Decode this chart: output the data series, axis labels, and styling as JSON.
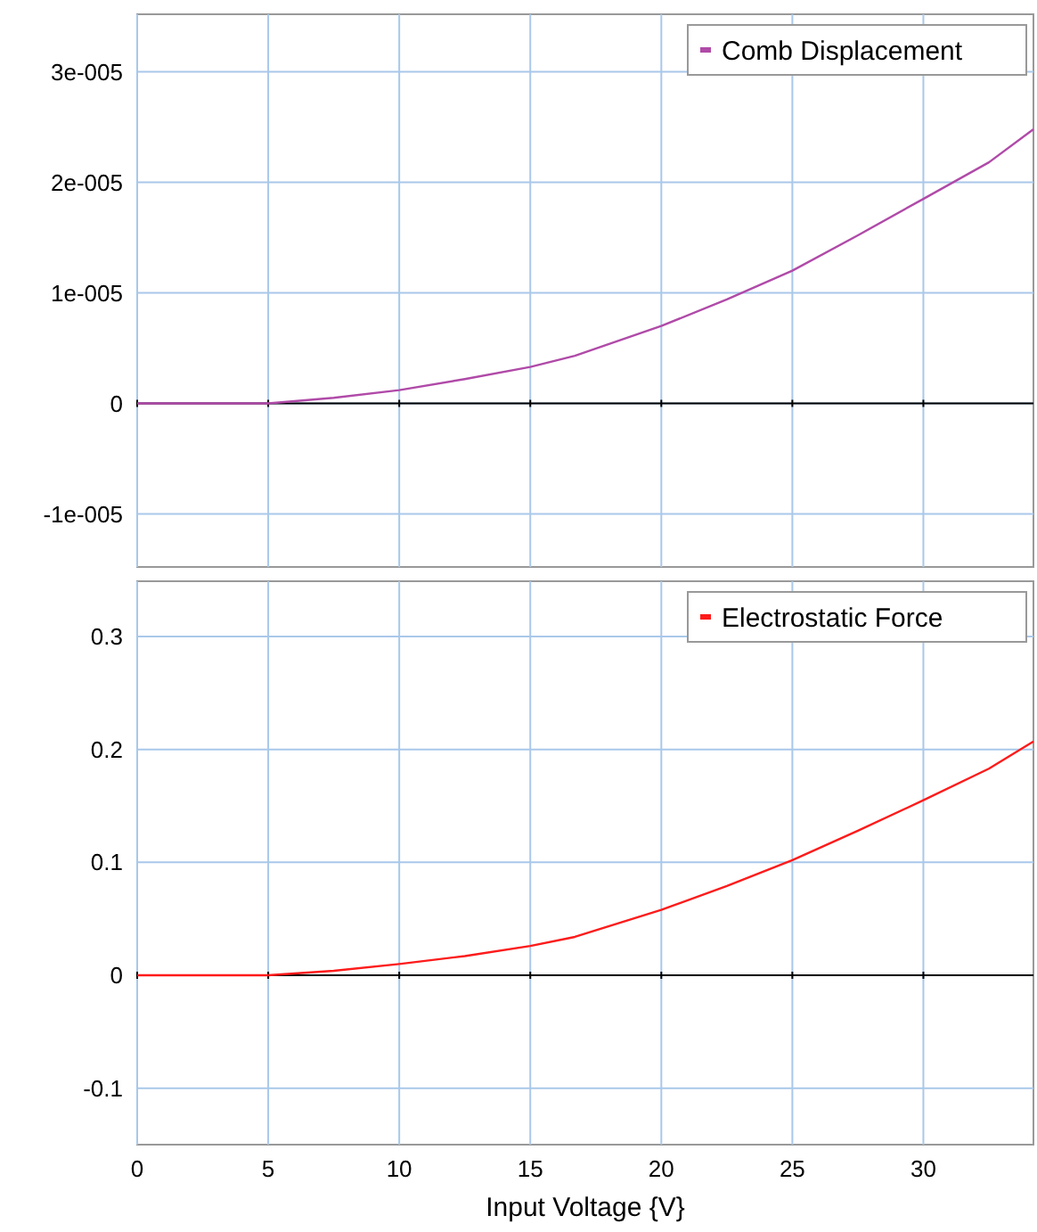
{
  "chart_data": [
    {
      "type": "line",
      "x": [
        0,
        2.5,
        5,
        7.5,
        10,
        12.5,
        15,
        16.7,
        20,
        22.5,
        25,
        27.5,
        30,
        32.5,
        34.2
      ],
      "series": [
        {
          "name": "Comb Displacement",
          "color": "#b04aa8",
          "values": [
            0,
            0,
            0,
            5e-07,
            1.2e-06,
            2.2e-06,
            3.3e-06,
            4.3e-06,
            7e-06,
            9.4e-06,
            1.2e-05,
            1.52e-05,
            1.85e-05,
            2.18e-05,
            2.48e-05
          ]
        }
      ],
      "xlim": [
        0,
        34.2
      ],
      "xticks": [
        0,
        5,
        10,
        15,
        20,
        25,
        30
      ],
      "ylim": [
        -1.48e-05,
        3.52e-05
      ],
      "yticks": [
        {
          "value": -1e-05,
          "label": "-1e-005"
        },
        {
          "value": 0,
          "label": "0"
        },
        {
          "value": 1e-05,
          "label": "1e-005"
        },
        {
          "value": 2e-05,
          "label": "2e-005"
        },
        {
          "value": 3e-05,
          "label": "3e-005"
        }
      ],
      "grid": true,
      "legend": "top right",
      "tick_labels": "y"
    },
    {
      "type": "line",
      "x": [
        0,
        2.5,
        5,
        7.5,
        10,
        12.5,
        15,
        16.7,
        20,
        22.5,
        25,
        27.5,
        30,
        32.5,
        34.2
      ],
      "series": [
        {
          "name": "Electrostatic Force",
          "color": "#ff1a1a",
          "values": [
            0,
            0,
            0,
            0.004,
            0.01,
            0.017,
            0.026,
            0.034,
            0.058,
            0.079,
            0.102,
            0.128,
            0.155,
            0.183,
            0.207
          ]
        }
      ],
      "xlim": [
        0,
        34.2
      ],
      "xticks": [
        0,
        5,
        10,
        15,
        20,
        25,
        30
      ],
      "ylim": [
        -0.15,
        0.349
      ],
      "yticks": [
        -0.1,
        0,
        0.1,
        0.2,
        0.3
      ],
      "xlabel": "Input Voltage {V}",
      "grid": true,
      "legend": "top right"
    }
  ]
}
